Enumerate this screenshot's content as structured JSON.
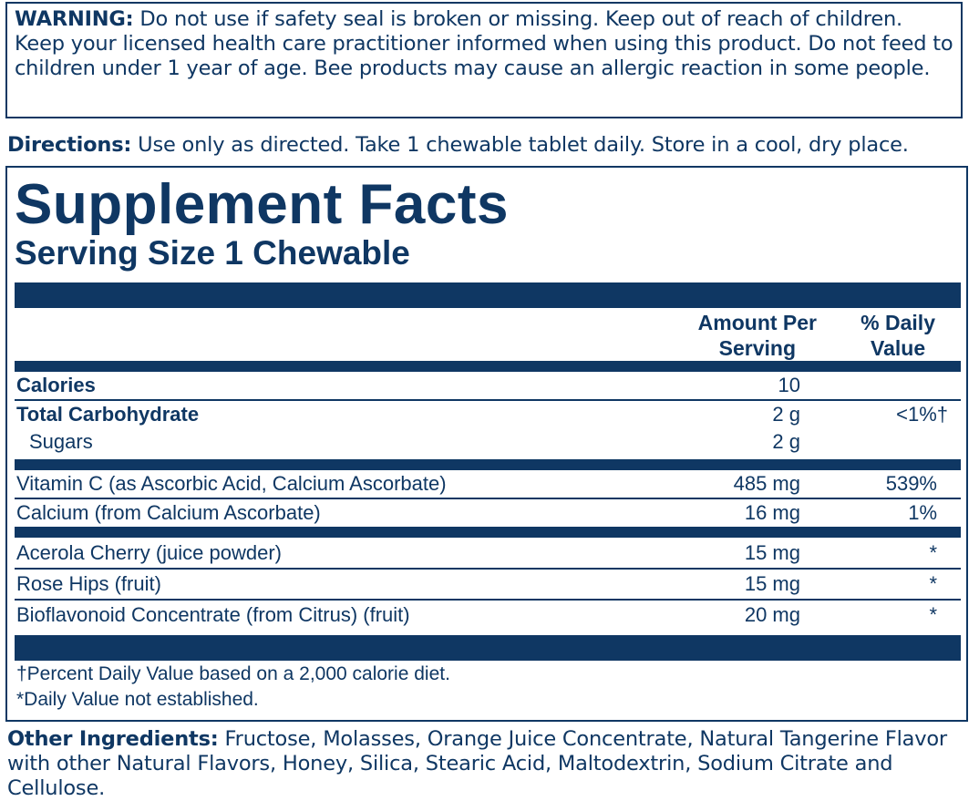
{
  "warning": {
    "label": "WARNING:",
    "text": " Do not use if safety seal is broken or missing. Keep out of reach of children. Keep your licensed health care practitioner informed when using this product. Do not feed to children under 1 year of age. Bee products may cause an allergic reaction in some people."
  },
  "directions": {
    "label": "Directions:",
    "text": " Use only as directed. Take 1 chewable tablet daily. Store in a cool, dry place."
  },
  "facts": {
    "title": "Supplement Facts",
    "serving_size": "Serving Size 1 Chewable",
    "col_amount": "Amount Per Serving",
    "col_amount_1": "Amount Per",
    "col_amount_2": "Serving",
    "col_dv_1": "% Daily",
    "col_dv_2": "Value",
    "rows": [
      {
        "name": "Calories",
        "amount": "10",
        "dv": ""
      },
      {
        "name": "Total Carbohydrate",
        "amount": "2 g",
        "dv": "<1%†"
      },
      {
        "name": "Sugars",
        "amount": "2 g",
        "dv": ""
      },
      {
        "name": "Vitamin C (as Ascorbic Acid, Calcium Ascorbate)",
        "amount": "485 mg",
        "dv": "539%"
      },
      {
        "name": "Calcium (from Calcium Ascorbate)",
        "amount": "16 mg",
        "dv": "1%"
      },
      {
        "name": "Acerola Cherry (juice powder)",
        "amount": "15 mg",
        "dv": "*"
      },
      {
        "name": "Rose Hips (fruit)",
        "amount": "15 mg",
        "dv": "*"
      },
      {
        "name": "Bioflavonoid Concentrate (from Citrus) (fruit)",
        "amount": "20 mg",
        "dv": "*"
      }
    ],
    "footnote_1": "†Percent Daily Value based on a 2,000 calorie diet.",
    "footnote_2": "*Daily Value not established."
  },
  "other_ingredients": {
    "label": "Other Ingredients:",
    "text": " Fructose, Molasses, Orange Juice Concentrate, Natural Tangerine Flavor with other Natural Flavors, Honey, Silica, Stearic Acid, Maltodextrin, Sodium Citrate and Cellulose."
  },
  "colors": {
    "ink": "#0f3763"
  }
}
